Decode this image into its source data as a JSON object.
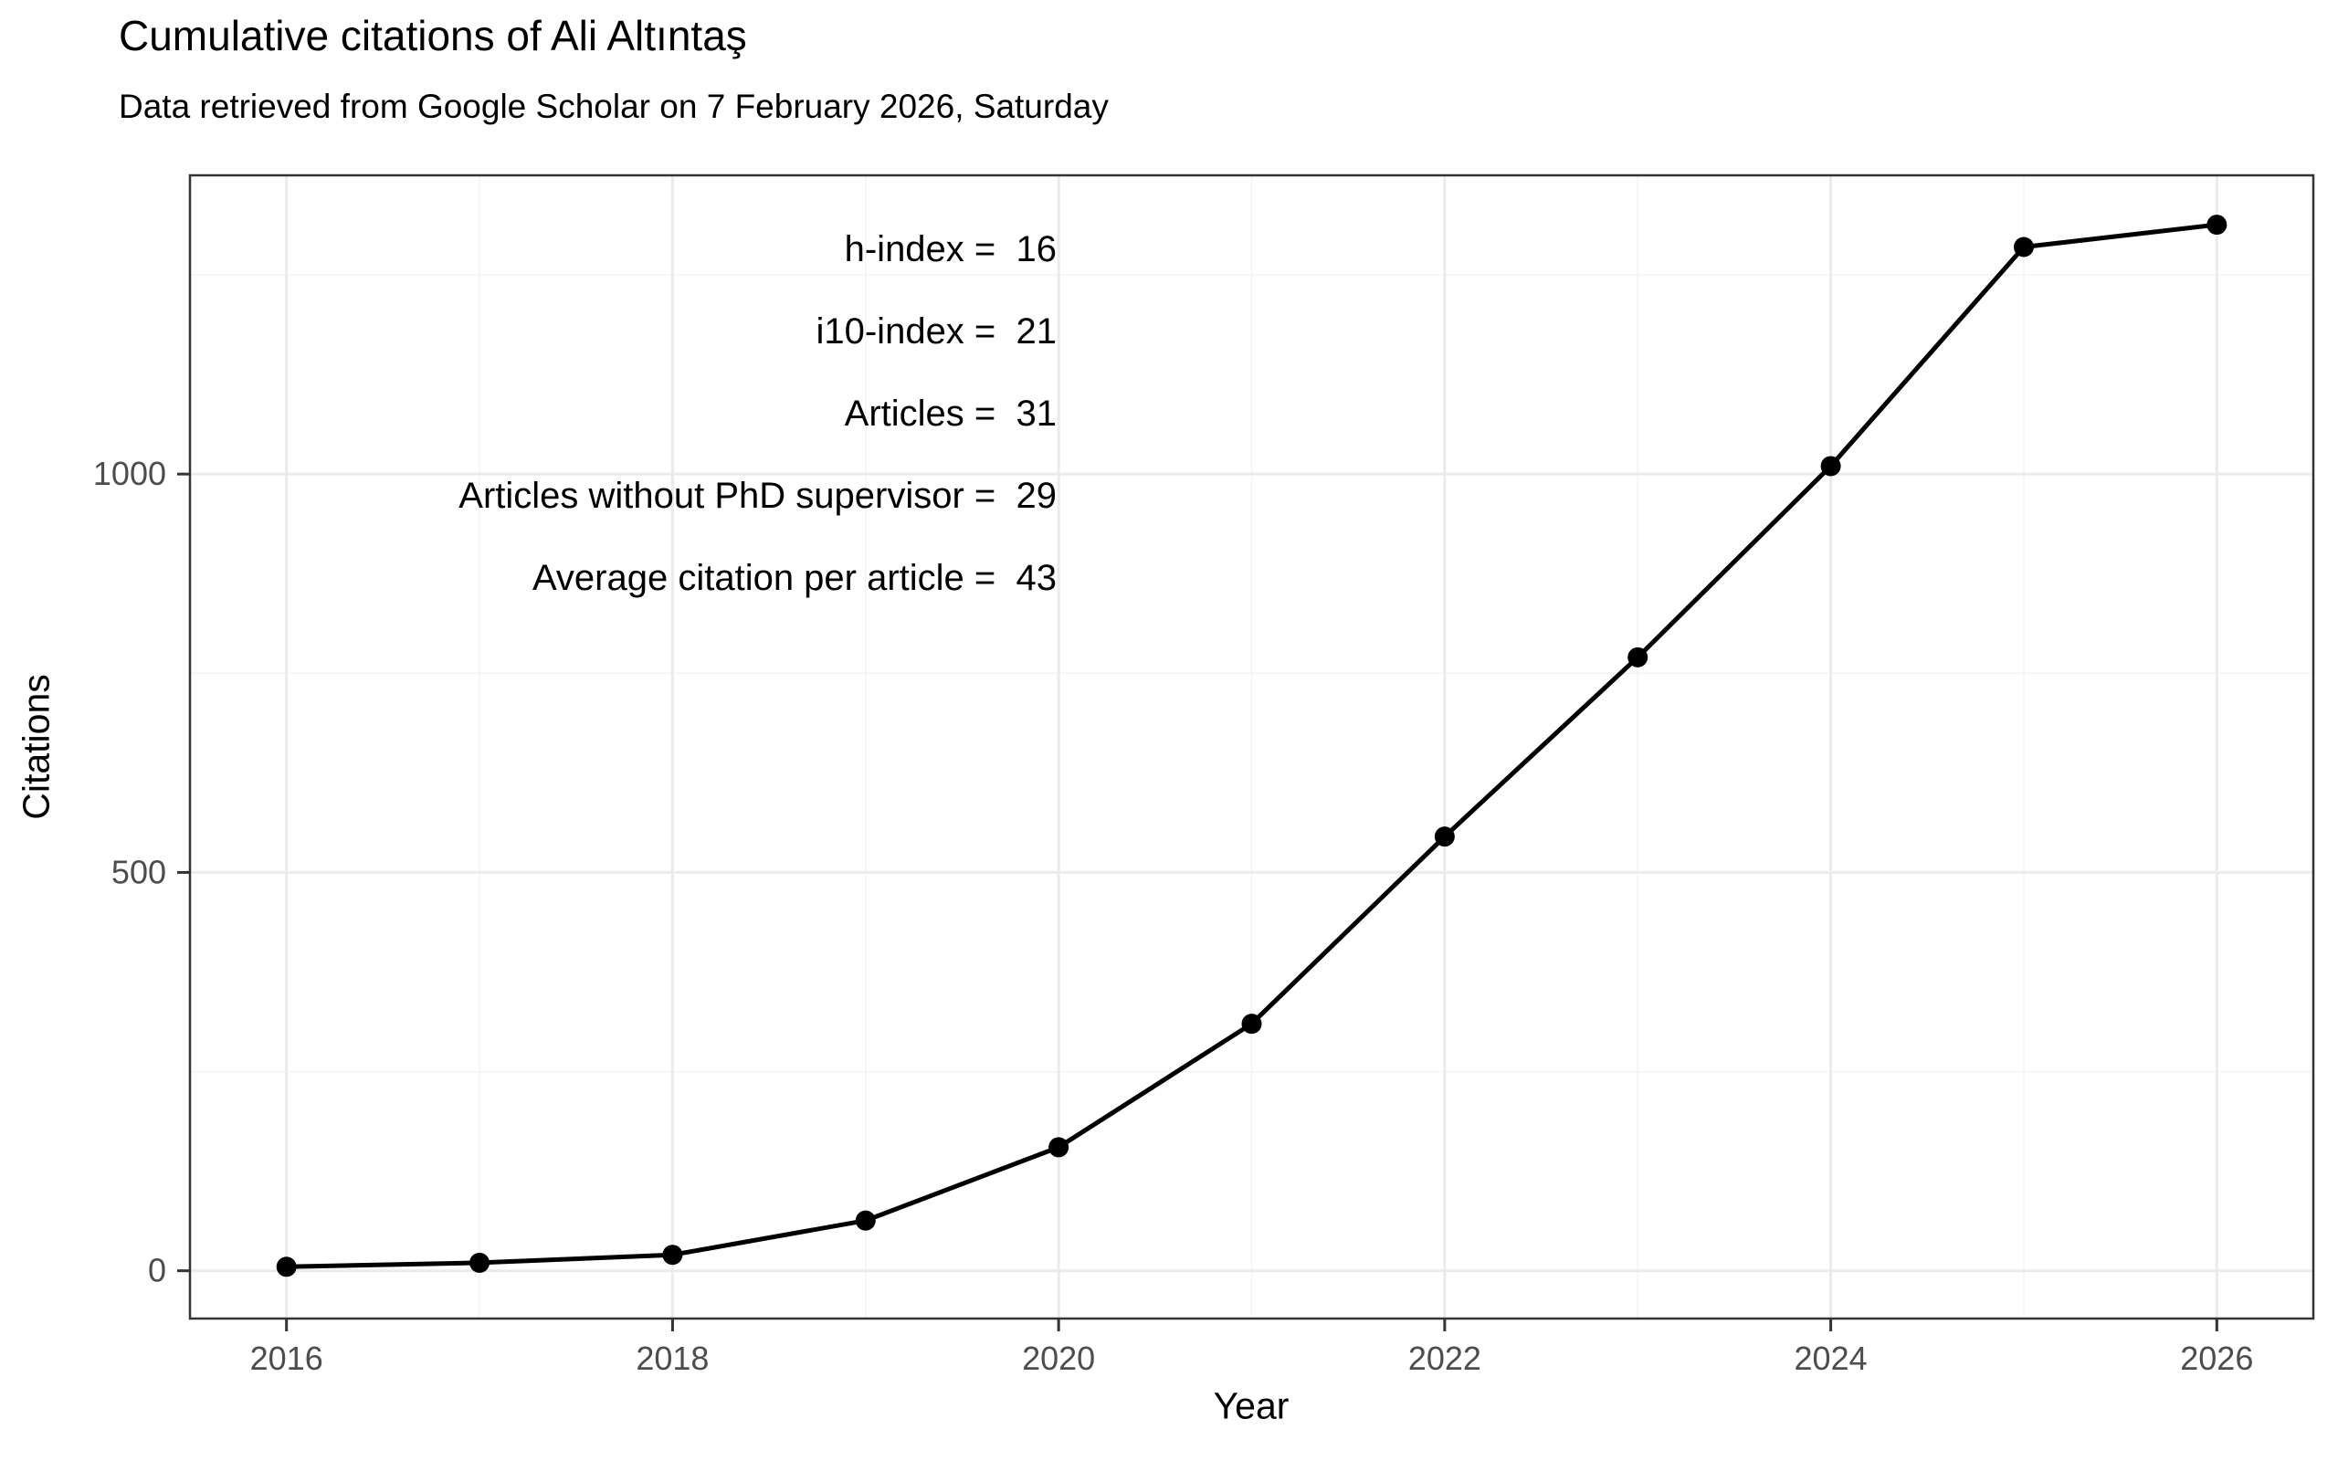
{
  "title": "Cumulative citations of Ali Altıntaş",
  "subtitle": "Data retrieved from Google Scholar on 7 February 2026, Saturday",
  "chart_data": {
    "type": "line",
    "title": "Cumulative citations of Ali Altıntaş",
    "subtitle": "Data retrieved from Google Scholar on 7 February 2026, Saturday",
    "xlabel": "Year",
    "ylabel": "Citations",
    "x": [
      2016,
      2017,
      2018,
      2019,
      2020,
      2021,
      2022,
      2023,
      2024,
      2025,
      2026
    ],
    "values": [
      5,
      10,
      20,
      63,
      155,
      310,
      545,
      770,
      1010,
      1285,
      1313
    ],
    "series_name": "Cumulative citations",
    "x_ticks": [
      2016,
      2018,
      2020,
      2022,
      2024,
      2026
    ],
    "x_minor_gridlines": [
      2017,
      2019,
      2021,
      2023,
      2025
    ],
    "y_ticks": [
      0,
      500,
      1000
    ],
    "y_minor_gridlines": [
      250,
      750,
      1250
    ],
    "xlim": [
      2015.5,
      2026.5
    ],
    "ylim": [
      -60,
      1375
    ],
    "grid": true,
    "legend": false,
    "stats": [
      {
        "label": "h-index",
        "value": "16"
      },
      {
        "label": "i10-index",
        "value": "21"
      },
      {
        "label": "Articles",
        "value": "31"
      },
      {
        "label": "Articles without PhD supervisor",
        "value": "29"
      },
      {
        "label": "Average citation per article",
        "value": "43"
      }
    ],
    "colors": {
      "line": "#000000",
      "point": "#000000",
      "text": "#000000",
      "tick_label": "#4d4d4d",
      "panel_border": "#333333",
      "grid_major": "#ebebeb",
      "grid_minor": "#f4f4f4",
      "background": "#ffffff"
    }
  }
}
